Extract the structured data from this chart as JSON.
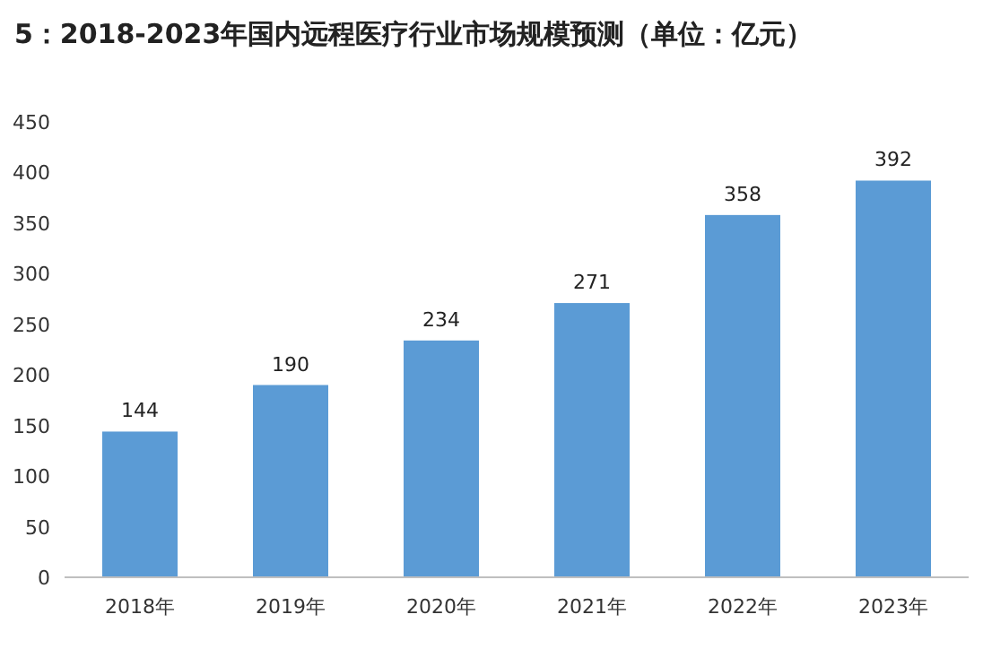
{
  "chart_data": {
    "type": "bar",
    "title": "5：2018-2023年国内远程医疗行业市场规模预测（单位：亿元）",
    "categories": [
      "2018年",
      "2019年",
      "2020年",
      "2021年",
      "2022年",
      "2023年"
    ],
    "values": [
      144,
      190,
      234,
      271,
      358,
      392
    ],
    "color": "#5b9bd5",
    "ylim": [
      0,
      450
    ],
    "yticks": [
      0,
      50,
      100,
      150,
      200,
      250,
      300,
      350,
      400,
      450
    ],
    "data_labels": true
  }
}
